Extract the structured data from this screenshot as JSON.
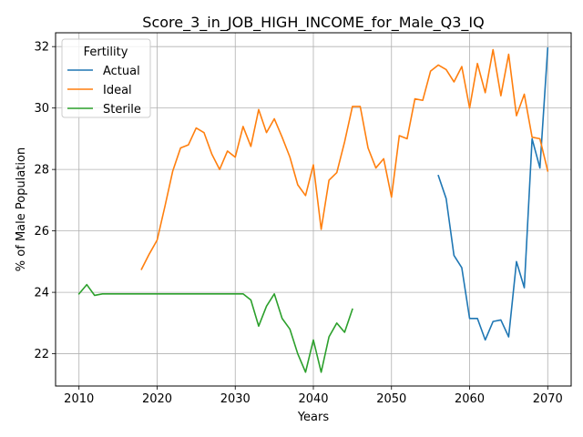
{
  "chart_data": {
    "type": "line",
    "title": "Score_3_in_JOB_HIGH_INCOME_for_Male_Q3_IQ",
    "xlabel": "Years",
    "ylabel": "% of Male Population",
    "xlim": [
      2007,
      2073
    ],
    "ylim": [
      20.95,
      32.45
    ],
    "xticks": [
      2010,
      2020,
      2030,
      2040,
      2050,
      2060,
      2070
    ],
    "yticks": [
      22,
      24,
      26,
      28,
      30,
      32
    ],
    "grid": true,
    "legend": {
      "title": "Fertility",
      "placement": "top-left"
    },
    "series": [
      {
        "name": "Actual",
        "color": "#1f77b4",
        "x": [
          2056,
          2057,
          2058,
          2059,
          2060,
          2061,
          2062,
          2063,
          2064,
          2065,
          2066,
          2067,
          2068,
          2069,
          2070
        ],
        "y": [
          27.8,
          27.05,
          25.2,
          24.8,
          23.15,
          23.15,
          22.45,
          23.05,
          23.1,
          22.55,
          25.0,
          24.15,
          29.0,
          28.05,
          31.95
        ]
      },
      {
        "name": "Ideal",
        "color": "#ff7f0e",
        "x": [
          2018,
          2019,
          2020,
          2021,
          2022,
          2023,
          2024,
          2025,
          2026,
          2027,
          2028,
          2029,
          2030,
          2031,
          2032,
          2033,
          2034,
          2035,
          2036,
          2037,
          2038,
          2039,
          2040,
          2041,
          2042,
          2043,
          2044,
          2045,
          2046,
          2047,
          2048,
          2049,
          2050,
          2051,
          2052,
          2053,
          2054,
          2055,
          2056,
          2057,
          2058,
          2059,
          2060,
          2061,
          2062,
          2063,
          2064,
          2065,
          2066,
          2067,
          2068,
          2069,
          2070
        ],
        "y": [
          24.75,
          25.25,
          25.7,
          26.8,
          27.95,
          28.7,
          28.8,
          29.35,
          29.2,
          28.5,
          28.0,
          28.6,
          28.4,
          29.4,
          28.75,
          29.95,
          29.2,
          29.65,
          29.05,
          28.4,
          27.5,
          27.15,
          28.15,
          26.05,
          27.65,
          27.9,
          28.9,
          30.05,
          30.05,
          28.7,
          28.05,
          28.35,
          27.1,
          29.1,
          29.0,
          30.3,
          30.25,
          31.2,
          31.4,
          31.25,
          30.85,
          31.35,
          30.0,
          31.45,
          30.5,
          31.9,
          30.4,
          31.75,
          29.75,
          30.45,
          29.05,
          29.0,
          27.95
        ]
      },
      {
        "name": "Sterile",
        "color": "#2ca02c",
        "x": [
          2010,
          2011,
          2012,
          2013,
          2014,
          2015,
          2016,
          2017,
          2018,
          2019,
          2020,
          2021,
          2022,
          2023,
          2024,
          2025,
          2026,
          2027,
          2028,
          2029,
          2030,
          2031,
          2032,
          2033,
          2034,
          2035,
          2036,
          2037,
          2038,
          2039,
          2040,
          2041,
          2042,
          2043,
          2044,
          2045
        ],
        "y": [
          23.95,
          24.25,
          23.9,
          23.95,
          23.95,
          23.95,
          23.95,
          23.95,
          23.95,
          23.95,
          23.95,
          23.95,
          23.95,
          23.95,
          23.95,
          23.95,
          23.95,
          23.95,
          23.95,
          23.95,
          23.95,
          23.95,
          23.75,
          22.9,
          23.55,
          23.95,
          23.15,
          22.8,
          22.0,
          21.4,
          22.45,
          21.4,
          22.55,
          23.0,
          22.7,
          23.45
        ]
      }
    ]
  }
}
